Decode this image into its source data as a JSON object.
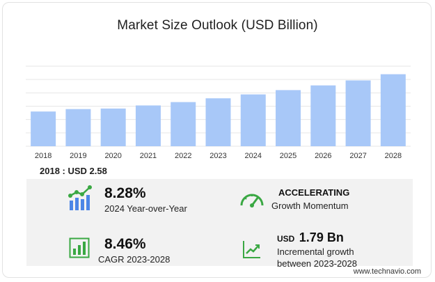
{
  "title": "Market Size Outlook (USD Billion)",
  "chart_data": {
    "type": "bar",
    "categories": [
      "2018",
      "2019",
      "2020",
      "2021",
      "2022",
      "2023",
      "2024",
      "2025",
      "2026",
      "2027",
      "2028"
    ],
    "values": [
      2.58,
      2.76,
      2.8,
      3.03,
      3.28,
      3.56,
      3.85,
      4.17,
      4.52,
      4.89,
      5.35
    ],
    "ylim": [
      0,
      5.95
    ],
    "grid": true,
    "bar_color": "#a8c8f8"
  },
  "base": {
    "label": "2018 : USD  2.58"
  },
  "stats": {
    "yoy": {
      "value": "8.28%",
      "label": "2024 Year-over-Year"
    },
    "momentum": {
      "value": "ACCELERATING",
      "label": "Growth Momentum"
    },
    "cagr": {
      "value": "8.46%",
      "label": "CAGR 2023-2028"
    },
    "incremental": {
      "prefix": "USD",
      "value": "1.79 Bn",
      "label1": "Incremental growth",
      "label2": "between 2023-2028"
    }
  },
  "footer": "www.technavio.com",
  "colors": {
    "icon_green": "#3aa843",
    "icon_blue": "#4c86e6",
    "panel": "#f2f2f2"
  }
}
